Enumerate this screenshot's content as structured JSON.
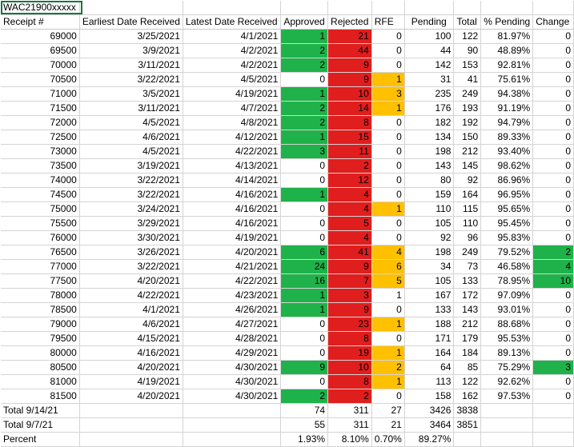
{
  "sheet": {
    "top_left_cell": "WAC21900xxxxx",
    "headers": [
      "Receipt #",
      "Earliest Date Received",
      "Latest Date Received",
      "Approved",
      "Rejected",
      "RFE",
      "Pending",
      "Total",
      "% Pending",
      "Change"
    ],
    "rows": [
      [
        "69000",
        "3/25/2021",
        "4/1/2021",
        "1",
        "21",
        "0",
        "100",
        "122",
        "81.97%",
        "0"
      ],
      [
        "69500",
        "3/9/2021",
        "4/2/2021",
        "2",
        "44",
        "0",
        "44",
        "90",
        "48.89%",
        "0"
      ],
      [
        "70000",
        "3/11/2021",
        "4/2/2021",
        "2",
        "9",
        "0",
        "142",
        "153",
        "92.81%",
        "0"
      ],
      [
        "70500",
        "3/22/2021",
        "4/5/2021",
        "0",
        "9",
        "1",
        "31",
        "41",
        "75.61%",
        "0"
      ],
      [
        "71000",
        "3/5/2021",
        "4/19/2021",
        "1",
        "10",
        "3",
        "235",
        "249",
        "94.38%",
        "0"
      ],
      [
        "71500",
        "3/11/2021",
        "4/7/2021",
        "2",
        "14",
        "1",
        "176",
        "193",
        "91.19%",
        "0"
      ],
      [
        "72000",
        "4/5/2021",
        "4/8/2021",
        "2",
        "8",
        "0",
        "182",
        "192",
        "94.79%",
        "0"
      ],
      [
        "72500",
        "4/6/2021",
        "4/12/2021",
        "1",
        "15",
        "0",
        "134",
        "150",
        "89.33%",
        "0"
      ],
      [
        "73000",
        "4/5/2021",
        "4/22/2021",
        "3",
        "11",
        "0",
        "198",
        "212",
        "93.40%",
        "0"
      ],
      [
        "73500",
        "3/19/2021",
        "4/13/2021",
        "0",
        "2",
        "0",
        "143",
        "145",
        "98.62%",
        "0"
      ],
      [
        "74000",
        "3/22/2021",
        "4/14/2021",
        "0",
        "12",
        "0",
        "80",
        "92",
        "86.96%",
        "0"
      ],
      [
        "74500",
        "3/22/2021",
        "4/16/2021",
        "1",
        "4",
        "0",
        "159",
        "164",
        "96.95%",
        "0"
      ],
      [
        "75000",
        "3/24/2021",
        "4/16/2021",
        "0",
        "4",
        "1",
        "110",
        "115",
        "95.65%",
        "0"
      ],
      [
        "75500",
        "3/29/2021",
        "4/16/2021",
        "0",
        "5",
        "0",
        "105",
        "110",
        "95.45%",
        "0"
      ],
      [
        "76000",
        "3/30/2021",
        "4/19/2021",
        "0",
        "4",
        "0",
        "92",
        "96",
        "95.83%",
        "0"
      ],
      [
        "76500",
        "3/26/2021",
        "4/20/2021",
        "6",
        "41",
        "4",
        "198",
        "249",
        "79.52%",
        "2"
      ],
      [
        "77000",
        "3/22/2021",
        "4/21/2021",
        "24",
        "9",
        "6",
        "34",
        "73",
        "46.58%",
        "4"
      ],
      [
        "77500",
        "4/20/2021",
        "4/22/2021",
        "16",
        "7",
        "5",
        "105",
        "133",
        "78.95%",
        "10"
      ],
      [
        "78000",
        "4/22/2021",
        "4/23/2021",
        "1",
        "3",
        "1",
        "167",
        "172",
        "97.09%",
        "0"
      ],
      [
        "78500",
        "4/1/2021",
        "4/26/2021",
        "1",
        "9",
        "0",
        "133",
        "143",
        "93.01%",
        "0"
      ],
      [
        "79000",
        "4/6/2021",
        "4/27/2021",
        "0",
        "23",
        "1",
        "188",
        "212",
        "88.68%",
        "0"
      ],
      [
        "79500",
        "4/15/2021",
        "4/28/2021",
        "0",
        "8",
        "0",
        "171",
        "179",
        "95.53%",
        "0"
      ],
      [
        "80000",
        "4/16/2021",
        "4/29/2021",
        "0",
        "19",
        "1",
        "164",
        "184",
        "89.13%",
        "0"
      ],
      [
        "80500",
        "4/20/2021",
        "4/30/2021",
        "9",
        "10",
        "2",
        "64",
        "85",
        "75.29%",
        "3"
      ],
      [
        "81000",
        "4/19/2021",
        "4/30/2021",
        "0",
        "8",
        "1",
        "113",
        "122",
        "92.62%",
        "0"
      ],
      [
        "81500",
        "4/20/2021",
        "4/30/2021",
        "2",
        "2",
        "0",
        "158",
        "162",
        "97.53%",
        "0"
      ]
    ],
    "cell_colors": {
      "green": "#1fb24a",
      "red": "#e01e1e",
      "yellow": "#ffc000"
    },
    "row_fills": [
      [
        "green",
        "red",
        ""
      ],
      [
        "green",
        "red",
        ""
      ],
      [
        "green",
        "red",
        ""
      ],
      [
        "",
        "red",
        "yellow"
      ],
      [
        "green",
        "red",
        "yellow"
      ],
      [
        "green",
        "red",
        "yellow"
      ],
      [
        "green",
        "red",
        ""
      ],
      [
        "green",
        "red",
        ""
      ],
      [
        "green",
        "red",
        ""
      ],
      [
        "",
        "red",
        ""
      ],
      [
        "",
        "red",
        ""
      ],
      [
        "green",
        "red",
        ""
      ],
      [
        "",
        "red",
        "yellow"
      ],
      [
        "",
        "red",
        ""
      ],
      [
        "",
        "red",
        ""
      ],
      [
        "green",
        "red",
        "yellow"
      ],
      [
        "green",
        "red",
        "yellow"
      ],
      [
        "green",
        "red",
        "yellow"
      ],
      [
        "green",
        "red",
        ""
      ],
      [
        "green",
        "red",
        ""
      ],
      [
        "",
        "red",
        "yellow"
      ],
      [
        "",
        "red",
        ""
      ],
      [
        "",
        "red",
        "yellow"
      ],
      [
        "green",
        "red",
        "yellow"
      ],
      [
        "",
        "red",
        "yellow"
      ],
      [
        "green",
        "red",
        ""
      ]
    ],
    "change_fills": [
      "",
      "",
      "",
      "",
      "",
      "",
      "",
      "",
      "",
      "",
      "",
      "",
      "",
      "",
      "",
      "green",
      "green",
      "green",
      "",
      "",
      "",
      "",
      "",
      "green",
      "",
      ""
    ],
    "summary": [
      {
        "label": "Total 9/14/21",
        "approved": "74",
        "rejected": "311",
        "rfe": "27",
        "pending": "3426",
        "total": "3838"
      },
      {
        "label": "Total 9/7/21",
        "approved": "55",
        "rejected": "311",
        "rfe": "21",
        "pending": "3464",
        "total": "3851"
      },
      {
        "label": "Percent",
        "approved": "1.93%",
        "rejected": "8.10%",
        "rfe": "0.70%",
        "pending": "89.27%",
        "total": ""
      }
    ]
  }
}
